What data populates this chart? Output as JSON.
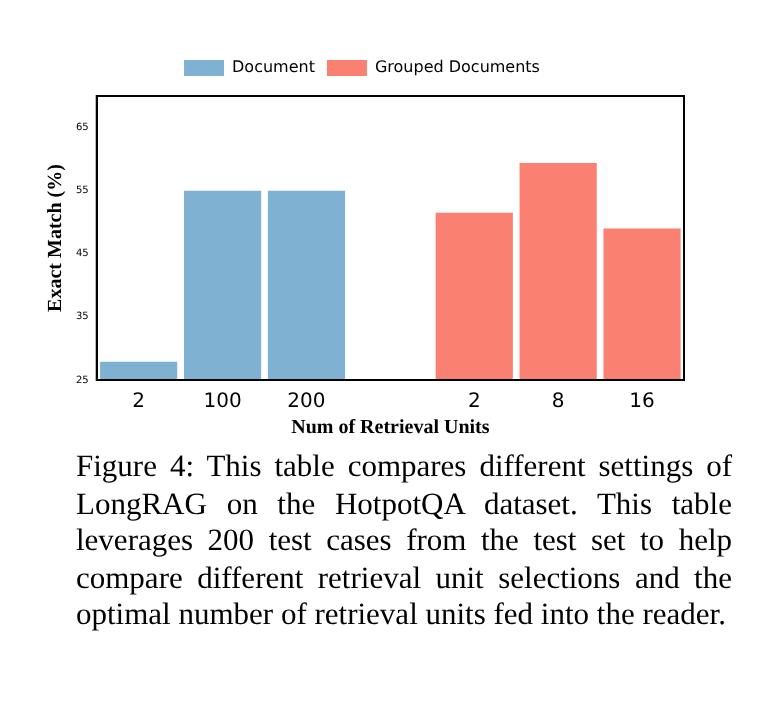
{
  "chart_data": {
    "type": "bar",
    "xlabel": "Num of Retrieval Units",
    "ylabel": "Exact Match (%)",
    "categories": [
      "2",
      "100",
      "200",
      null,
      "2",
      "8",
      "16"
    ],
    "series": [
      {
        "name": "Document",
        "color": "#7fb1d3",
        "values": [
          27.9,
          55,
          55,
          null,
          null,
          null,
          null
        ]
      },
      {
        "name": "Grouped Documents",
        "color": "#fa8072",
        "values": [
          null,
          null,
          null,
          null,
          51.5,
          59.4,
          49
        ]
      }
    ],
    "ylim": [
      25,
      70
    ],
    "yticks": [
      25,
      35,
      45,
      55,
      65
    ],
    "grid": false,
    "legend": "top",
    "annotations": [
      "Figure 4: This table compares different settings of LongRAG on the HotpotQA dataset. This table leverages 200 test cases from the test set to help compare different retrieval unit selections and the optimal number of retrieval units fed into the reader."
    ]
  }
}
